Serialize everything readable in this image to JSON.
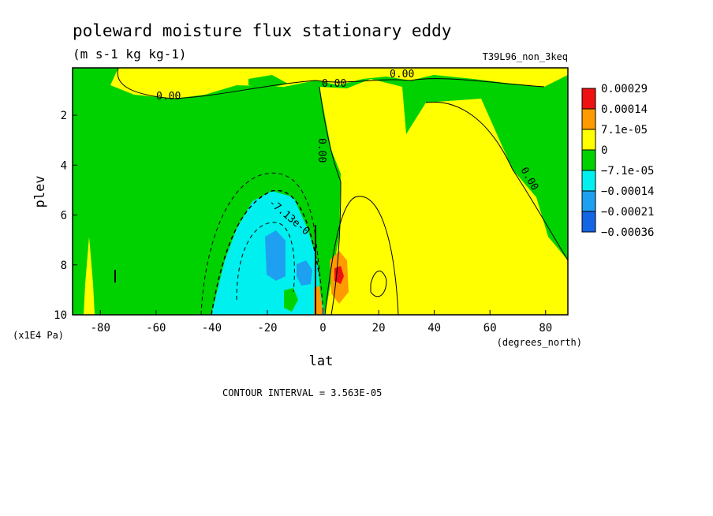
{
  "chart_data": {
    "type": "heatmap",
    "title": "poleward moisture flux stationary eddy",
    "units": "(m s-1 kg kg-1)",
    "run_label": "T39L96_non_3keq",
    "xlabel": "lat",
    "ylabel": "plev",
    "x_units": "(degrees_north)",
    "y_units": "(x1E4 Pa)",
    "xlim": [
      -90,
      88
    ],
    "ylim": [
      10,
      0.1
    ],
    "x_ticks": [
      "-80",
      "-60",
      "-40",
      "-20",
      "0",
      "20",
      "40",
      "60",
      "80"
    ],
    "y_ticks": [
      "2",
      "4",
      "6",
      "8",
      "10"
    ],
    "legend": {
      "placement": "right",
      "levels": [
        "0.00029",
        "0.00014",
        "7.1e-05",
        "0",
        "−7.1e-05",
        "−0.00014",
        "−0.00021",
        "−0.00036"
      ],
      "colors": [
        "#ee1111",
        "#ff9a00",
        "#ffff00",
        "#00d200",
        "#00f0f0",
        "#1ea0f0",
        "#1464e6",
        "#ffff00"
      ]
    },
    "contour_labels": [
      "0.00",
      "0.00",
      "0.00",
      "0.00",
      "0.00",
      "-7.13e-0"
    ],
    "contour_interval_text": "CONTOUR INTERVAL = 3.563E-05",
    "regions": [
      {
        "level": "0",
        "description": "positive region: Northern Hemisphere upper troposphere and stratosphere",
        "color": "#ffff00"
      },
      {
        "level": "-7.1e-05",
        "description": "negative region: tropics to -40 lat, surface to 5 plev",
        "color": "#00d200"
      },
      {
        "level": "-0.00014",
        "description": "negative core centred near -15 lat, 7 plev",
        "color": "#00f0f0"
      },
      {
        "level": "-0.00021",
        "description": "negative extremes near -18 lat 7.5 plev and -6 lat 8.5 plev",
        "color": "#1ea0f0"
      },
      {
        "level": "0.00029",
        "description": "positive extreme near 7 lat, 8.5 plev",
        "color": "#ee1111"
      }
    ]
  }
}
